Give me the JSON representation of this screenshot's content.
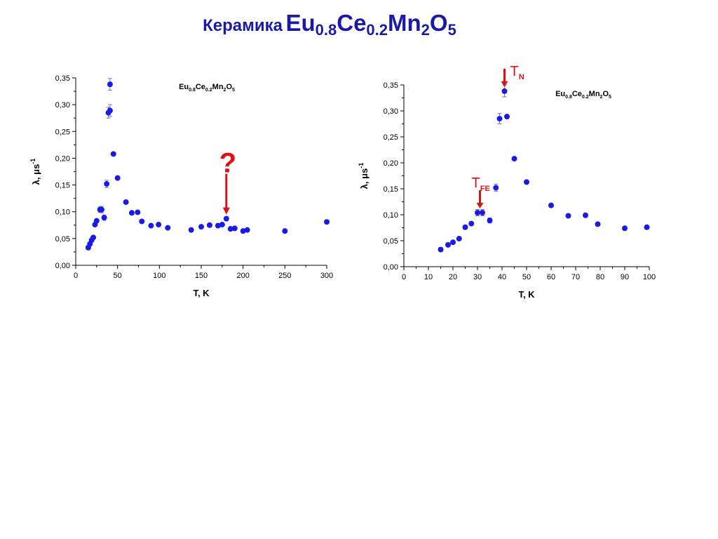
{
  "slide": {
    "title_lead": "Керамика",
    "formula": [
      {
        "t": "Eu",
        "sub": false
      },
      {
        "t": "0.8",
        "sub": true
      },
      {
        "t": "Ce",
        "sub": false
      },
      {
        "t": "0.2",
        "sub": true
      },
      {
        "t": "Mn",
        "sub": false
      },
      {
        "t": "2",
        "sub": true
      },
      {
        "t": "O",
        "sub": false
      },
      {
        "t": "5",
        "sub": true
      }
    ]
  },
  "colors": {
    "marker": "#1a1ae6",
    "errorbar": "#7070e0",
    "annotation": "#e01010",
    "title": "#1a1aa6"
  },
  "chart_data": [
    {
      "type": "scatter",
      "title": "",
      "xlabel": "T, K",
      "ylabel_main": "λ, μs",
      "ylabel_sup": "-1",
      "xlim": [
        0,
        300
      ],
      "ylim": [
        0,
        0.35
      ],
      "xticks": [
        0,
        50,
        100,
        150,
        200,
        250,
        300
      ],
      "xtick_labels": [
        "0",
        "50",
        "100",
        "150",
        "200",
        "250",
        "300"
      ],
      "yticks": [
        0,
        0.05,
        0.1,
        0.15,
        0.2,
        0.25,
        0.3,
        0.35
      ],
      "ytick_labels": [
        "0,00",
        "0,05",
        "0,10",
        "0,15",
        "0,20",
        "0,25",
        "0,30",
        "0,35"
      ],
      "legend": [
        "Eu",
        "0.8",
        "Ce",
        "0.2",
        "Mn",
        "2",
        "O",
        "5"
      ],
      "legend_position": "top-center",
      "grid": false,
      "points": [
        [
          15,
          0.033
        ],
        [
          17,
          0.04
        ],
        [
          19,
          0.047
        ],
        [
          21,
          0.052
        ],
        [
          23,
          0.076
        ],
        [
          25,
          0.083
        ],
        [
          29,
          0.104
        ],
        [
          31,
          0.104
        ],
        [
          34,
          0.089
        ],
        [
          37,
          0.152
        ],
        [
          39,
          0.285
        ],
        [
          41,
          0.289
        ],
        [
          41,
          0.338
        ],
        [
          45,
          0.208
        ],
        [
          50,
          0.163
        ],
        [
          60,
          0.118
        ],
        [
          67,
          0.098
        ],
        [
          74,
          0.099
        ],
        [
          79,
          0.082
        ],
        [
          90,
          0.074
        ],
        [
          99,
          0.076
        ],
        [
          110,
          0.07
        ],
        [
          138,
          0.066
        ],
        [
          150,
          0.072
        ],
        [
          160,
          0.075
        ],
        [
          170,
          0.074
        ],
        [
          175,
          0.076
        ],
        [
          180,
          0.087
        ],
        [
          185,
          0.068
        ],
        [
          190,
          0.069
        ],
        [
          200,
          0.064
        ],
        [
          205,
          0.066
        ],
        [
          250,
          0.064
        ],
        [
          300,
          0.081
        ]
      ],
      "errors": [
        [
          15,
          0.004
        ],
        [
          34,
          0.005
        ],
        [
          37,
          0.007
        ],
        [
          39,
          0.01
        ],
        [
          41,
          0.011
        ],
        [
          29,
          0.005
        ],
        [
          31,
          0.006
        ]
      ],
      "annotations": [
        {
          "text": "?",
          "x": 180,
          "arrow_to_y": 0.087,
          "kind": "question"
        }
      ]
    },
    {
      "type": "scatter",
      "title": "",
      "xlabel": "T, K",
      "ylabel_main": "λ, μs",
      "ylabel_sup": "-1",
      "xlim": [
        0,
        100
      ],
      "ylim": [
        0,
        0.35
      ],
      "xticks": [
        0,
        10,
        20,
        30,
        40,
        50,
        60,
        70,
        80,
        90,
        100
      ],
      "xtick_labels": [
        "0",
        "10",
        "20",
        "30",
        "40",
        "50",
        "60",
        "70",
        "80",
        "90",
        "100"
      ],
      "yticks": [
        0,
        0.05,
        0.1,
        0.15,
        0.2,
        0.25,
        0.3,
        0.35
      ],
      "ytick_labels": [
        "0,00",
        "0,05",
        "0,10",
        "0,15",
        "0,20",
        "0,25",
        "0,30",
        "0,35"
      ],
      "legend": [
        "Eu",
        "0.8",
        "Ce",
        "0.2",
        "Mn",
        "2",
        "O",
        "5"
      ],
      "legend_position": "top-right",
      "grid": false,
      "points": [
        [
          15,
          0.033
        ],
        [
          18,
          0.042
        ],
        [
          20,
          0.047
        ],
        [
          22.5,
          0.054
        ],
        [
          25,
          0.076
        ],
        [
          27.5,
          0.083
        ],
        [
          30,
          0.104
        ],
        [
          32,
          0.104
        ],
        [
          35,
          0.089
        ],
        [
          37.5,
          0.152
        ],
        [
          39,
          0.285
        ],
        [
          42,
          0.289
        ],
        [
          41,
          0.338
        ],
        [
          45,
          0.208
        ],
        [
          50,
          0.163
        ],
        [
          60,
          0.118
        ],
        [
          67,
          0.098
        ],
        [
          74,
          0.099
        ],
        [
          79,
          0.082
        ],
        [
          90,
          0.074
        ],
        [
          99,
          0.076
        ]
      ],
      "errors": [
        [
          15,
          0.004
        ],
        [
          30,
          0.006
        ],
        [
          32,
          0.006
        ],
        [
          35,
          0.005
        ],
        [
          37.5,
          0.007
        ],
        [
          39,
          0.01
        ],
        [
          41,
          0.011
        ]
      ],
      "annotations": [
        {
          "text": "T",
          "sub": "N",
          "x": 41,
          "arrow_to_y": 0.338,
          "kind": "label"
        },
        {
          "text": "T",
          "sub": "FE",
          "x": 31,
          "arrow_to_y": 0.104,
          "kind": "label"
        }
      ]
    }
  ]
}
